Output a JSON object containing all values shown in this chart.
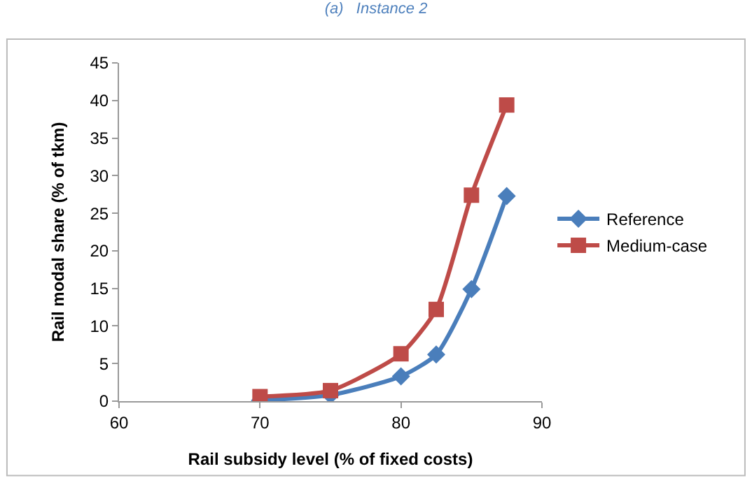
{
  "chart_data": {
    "type": "line",
    "title": "(a)   Instance 2",
    "xlabel": "Rail subsidy level (% of fixed costs)",
    "ylabel": "Rail modal share (% of tkm)",
    "x": [
      70,
      75,
      80,
      82.5,
      85,
      87.5
    ],
    "series": [
      {
        "name": "Reference",
        "color": "#4a7ebb",
        "marker": "diamond",
        "values": [
          0.1,
          0.8,
          3.3,
          6.2,
          14.9,
          27.3
        ]
      },
      {
        "name": "Medium-case",
        "color": "#be4b48",
        "marker": "square",
        "values": [
          0.6,
          1.4,
          6.3,
          12.2,
          27.4,
          39.4
        ]
      }
    ],
    "xlim": [
      60,
      90
    ],
    "xticks": [
      60,
      70,
      80,
      90
    ],
    "ylim": [
      0,
      45
    ],
    "yticks": [
      0,
      5,
      10,
      15,
      20,
      25,
      30,
      35,
      40,
      45
    ],
    "legend": "right",
    "line_style": "solid"
  }
}
